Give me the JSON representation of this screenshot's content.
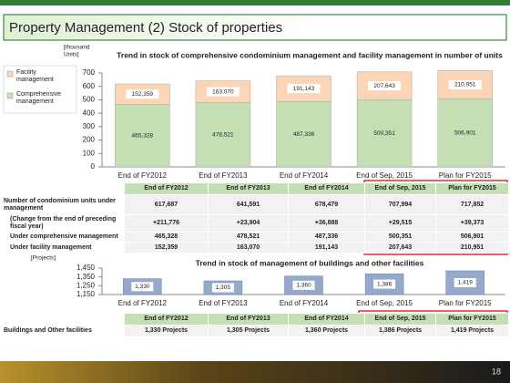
{
  "header": {
    "title": "Property Management (2) Stock of properties"
  },
  "chart_data": [
    {
      "type": "bar",
      "stacked": true,
      "title": "Trend in stock of comprehensive condominium management and facility management in number of units",
      "y_label": [
        "[thousand",
        "Units]"
      ],
      "categories": [
        "End of FY2012",
        "End of FY2013",
        "End of FY2014",
        "End of Sep, 2015",
        "Plan for FY2015"
      ],
      "series": [
        {
          "name": "Comprehensive management",
          "color": "#c4dfb4",
          "values": [
            465.328,
            478.521,
            487.336,
            500.351,
            506.901
          ],
          "value_labels": [
            "465,328",
            "478,521",
            "487,336",
            "500,351",
            "506,901"
          ]
        },
        {
          "name": "Facility management",
          "color": "#fbd5b5",
          "values": [
            152.359,
            163.07,
            191.143,
            207.643,
            210.951
          ],
          "value_labels": [
            "152,359",
            "163,070",
            "191,143",
            "207,643",
            "210,951"
          ]
        }
      ],
      "ylim": [
        0,
        700
      ],
      "yticks": [
        0,
        100,
        200,
        300,
        400,
        500,
        600,
        700
      ],
      "legend": "left"
    },
    {
      "type": "bar",
      "title": "Trend in stock of management of buildings and other facilities",
      "y_label": [
        "[Projects]"
      ],
      "categories": [
        "End of FY2012",
        "End of FY2013",
        "End of FY2014",
        "End of Sep, 2015",
        "Plan for FY2015"
      ],
      "color": "#95a9cc",
      "values": [
        1330,
        1305,
        1360,
        1386,
        1419
      ],
      "value_labels": [
        "1,330",
        "1,305",
        "1,360",
        "1,386",
        "1,419"
      ],
      "ylim": [
        1150,
        1450
      ],
      "yticks": [
        {
          "value": 1150,
          "label": "1,150"
        },
        {
          "value": 1250,
          "label": "1,250"
        },
        {
          "value": 1350,
          "label": "1,350"
        },
        {
          "value": 1450,
          "label": "1,450"
        }
      ]
    }
  ],
  "table1": {
    "columns": [
      "End of FY2012",
      "End of FY2013",
      "End of FY2014",
      "End of Sep, 2015",
      "Plan for FY2015"
    ],
    "rows": [
      {
        "label": "Number of condominium units under management",
        "values": [
          "617,687",
          "641,591",
          "678,479",
          "707,994",
          "717,852"
        ]
      },
      {
        "label": "(Change from the end of preceding fiscal year)",
        "values": [
          "+211,776",
          "+23,904",
          "+36,888",
          "+29,515",
          "+39,373"
        ]
      },
      {
        "label": "Under comprehensive management",
        "values": [
          "465,328",
          "478,521",
          "487,336",
          "500,351",
          "506,901"
        ]
      },
      {
        "label": "Under facility management",
        "values": [
          "152,359",
          "163,070",
          "191,143",
          "207,643",
          "210,951"
        ]
      }
    ]
  },
  "table2": {
    "columns": [
      "End of FY2012",
      "End of FY2013",
      "End of FY2014",
      "End of Sep, 2015",
      "Plan for FY2015"
    ],
    "rows": [
      {
        "label": "Buildings and Other facilities",
        "values": [
          "1,330 Projects",
          "1,305 Projects",
          "1,360 Projects",
          "1,386 Projects",
          "1,419 Projects"
        ]
      }
    ]
  },
  "page_number": "18"
}
